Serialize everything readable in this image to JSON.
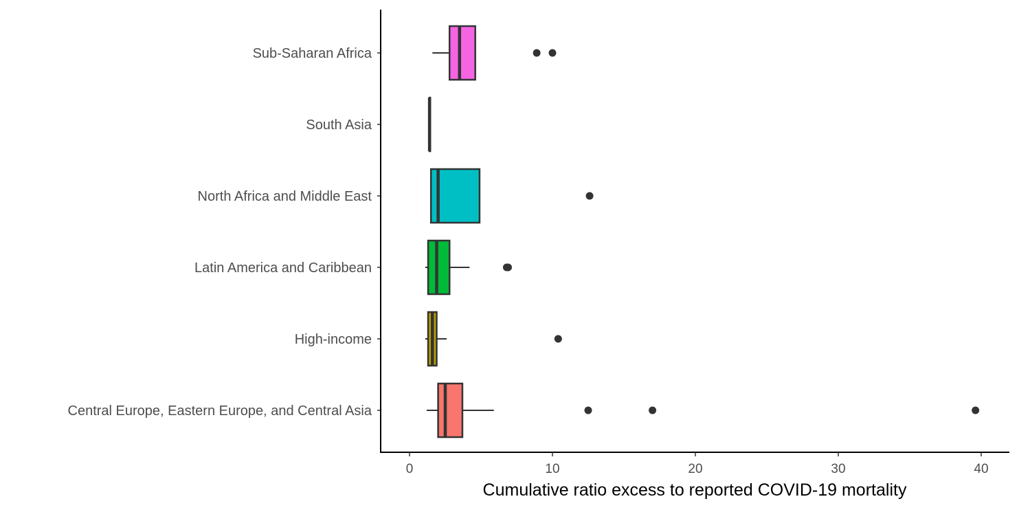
{
  "chart_data": {
    "type": "boxplot",
    "orientation": "horizontal",
    "title": "",
    "xlabel": "Cumulative ratio excess to reported COVID-19 mortality",
    "ylabel": "",
    "xlim": [
      -2,
      42
    ],
    "xticks": [
      0,
      10,
      20,
      30,
      40
    ],
    "xtick_labels": [
      "0",
      "10",
      "20",
      "30",
      "40"
    ],
    "grid": false,
    "legend": "none",
    "categories": [
      "Central Europe, Eastern Europe, and Central Asia",
      "High-income",
      "Latin America and Caribbean",
      "North Africa and Middle East",
      "South Asia",
      "Sub-Saharan Africa"
    ],
    "boxes": [
      {
        "category": "Central Europe, Eastern Europe, and Central Asia",
        "color": "#F8766D",
        "whisker_low": 1.2,
        "q1": 2.0,
        "median": 2.5,
        "q3": 3.7,
        "whisker_high": 5.9,
        "outliers": [
          12.5,
          17.0,
          39.6
        ]
      },
      {
        "category": "High-income",
        "color": "#B79F00",
        "whisker_low": 1.1,
        "q1": 1.3,
        "median": 1.6,
        "q3": 1.9,
        "whisker_high": 2.6,
        "outliers": [
          10.4
        ]
      },
      {
        "category": "Latin America and Caribbean",
        "color": "#00BA38",
        "whisker_low": 1.1,
        "q1": 1.3,
        "median": 1.9,
        "q3": 2.8,
        "whisker_high": 4.2,
        "outliers": [
          6.8,
          6.9
        ]
      },
      {
        "category": "North Africa and Middle East",
        "color": "#00BFC4",
        "whisker_low": 1.5,
        "q1": 1.5,
        "median": 2.0,
        "q3": 4.9,
        "whisker_high": 4.9,
        "outliers": [
          12.6
        ]
      },
      {
        "category": "South Asia",
        "color": "#619CFF",
        "whisker_low": 1.4,
        "q1": 1.4,
        "median": 1.4,
        "q3": 1.45,
        "whisker_high": 1.45,
        "outliers": []
      },
      {
        "category": "Sub-Saharan Africa",
        "color": "#F564E3",
        "whisker_low": 1.6,
        "q1": 2.8,
        "median": 3.5,
        "q3": 4.6,
        "whisker_high": 4.6,
        "outliers": [
          8.9,
          10.0
        ]
      }
    ]
  }
}
